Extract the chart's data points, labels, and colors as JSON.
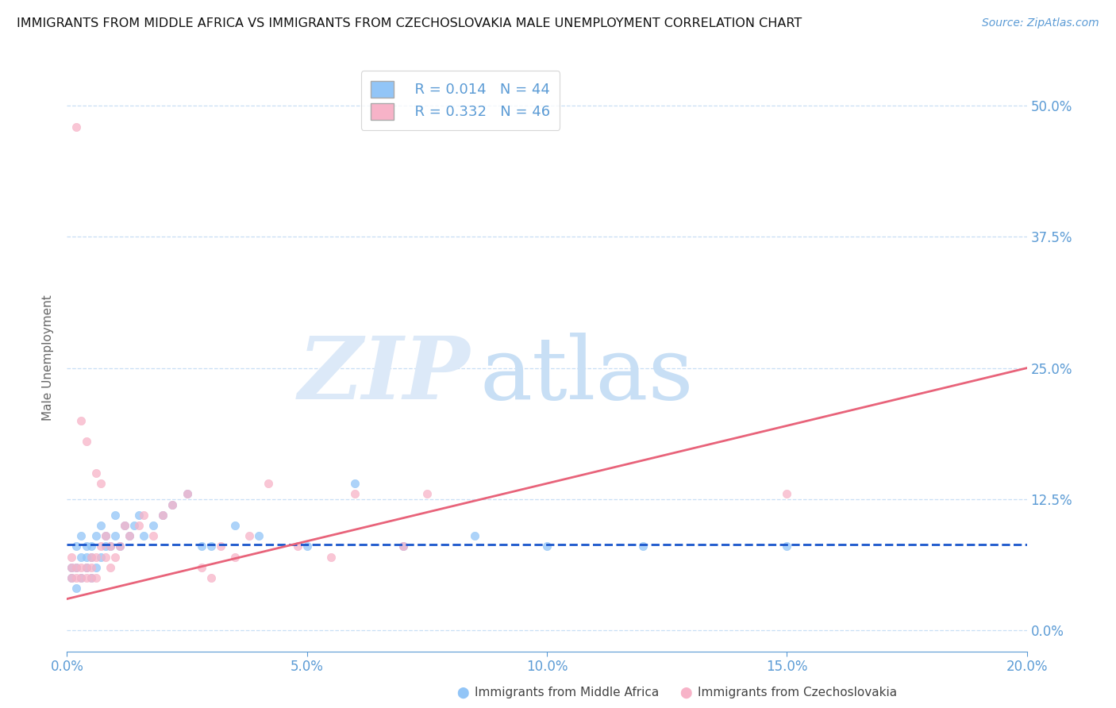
{
  "title": "IMMIGRANTS FROM MIDDLE AFRICA VS IMMIGRANTS FROM CZECHOSLOVAKIA MALE UNEMPLOYMENT CORRELATION CHART",
  "source": "Source: ZipAtlas.com",
  "xlabel_blue": "Immigrants from Middle Africa",
  "xlabel_pink": "Immigrants from Czechoslovakia",
  "ylabel": "Male Unemployment",
  "legend_blue_R": "R = 0.014",
  "legend_blue_N": "N = 44",
  "legend_pink_R": "R = 0.332",
  "legend_pink_N": "N = 46",
  "xlim": [
    0.0,
    0.2
  ],
  "ylim": [
    -0.02,
    0.54
  ],
  "yticks": [
    0.0,
    0.125,
    0.25,
    0.375,
    0.5
  ],
  "ytick_labels": [
    "0.0%",
    "12.5%",
    "25.0%",
    "37.5%",
    "50.0%"
  ],
  "xticks": [
    0.0,
    0.05,
    0.1,
    0.15,
    0.2
  ],
  "xtick_labels": [
    "0.0%",
    "5.0%",
    "10.0%",
    "15.0%",
    "20.0%"
  ],
  "color_blue": "#92c5f7",
  "color_pink": "#f7b3c8",
  "color_trendline_blue": "#1a56cc",
  "color_trendline_pink": "#e8637a",
  "color_axis": "#5b9bd5",
  "color_grid": "#c8dff5",
  "blue_scatter_x": [
    0.001,
    0.001,
    0.002,
    0.002,
    0.002,
    0.003,
    0.003,
    0.003,
    0.004,
    0.004,
    0.004,
    0.005,
    0.005,
    0.005,
    0.006,
    0.006,
    0.007,
    0.007,
    0.008,
    0.008,
    0.009,
    0.01,
    0.01,
    0.011,
    0.012,
    0.013,
    0.014,
    0.015,
    0.016,
    0.018,
    0.02,
    0.022,
    0.025,
    0.028,
    0.03,
    0.035,
    0.04,
    0.05,
    0.06,
    0.07,
    0.085,
    0.1,
    0.12,
    0.15
  ],
  "blue_scatter_y": [
    0.05,
    0.06,
    0.04,
    0.06,
    0.08,
    0.05,
    0.07,
    0.09,
    0.06,
    0.07,
    0.08,
    0.05,
    0.07,
    0.08,
    0.06,
    0.09,
    0.07,
    0.1,
    0.08,
    0.09,
    0.08,
    0.09,
    0.11,
    0.08,
    0.1,
    0.09,
    0.1,
    0.11,
    0.09,
    0.1,
    0.11,
    0.12,
    0.13,
    0.08,
    0.08,
    0.1,
    0.09,
    0.08,
    0.14,
    0.08,
    0.09,
    0.08,
    0.08,
    0.08
  ],
  "pink_scatter_x": [
    0.001,
    0.001,
    0.001,
    0.002,
    0.002,
    0.002,
    0.003,
    0.003,
    0.003,
    0.004,
    0.004,
    0.004,
    0.005,
    0.005,
    0.005,
    0.006,
    0.006,
    0.006,
    0.007,
    0.007,
    0.008,
    0.008,
    0.009,
    0.009,
    0.01,
    0.011,
    0.012,
    0.013,
    0.015,
    0.016,
    0.018,
    0.02,
    0.022,
    0.025,
    0.028,
    0.03,
    0.032,
    0.035,
    0.038,
    0.042,
    0.048,
    0.055,
    0.06,
    0.07,
    0.075,
    0.15
  ],
  "pink_scatter_y": [
    0.05,
    0.06,
    0.07,
    0.05,
    0.06,
    0.48,
    0.05,
    0.06,
    0.2,
    0.05,
    0.06,
    0.18,
    0.05,
    0.06,
    0.07,
    0.05,
    0.15,
    0.07,
    0.14,
    0.08,
    0.07,
    0.09,
    0.06,
    0.08,
    0.07,
    0.08,
    0.1,
    0.09,
    0.1,
    0.11,
    0.09,
    0.11,
    0.12,
    0.13,
    0.06,
    0.05,
    0.08,
    0.07,
    0.09,
    0.14,
    0.08,
    0.07,
    0.13,
    0.08,
    0.13,
    0.13
  ],
  "blue_trendline_x": [
    0.0,
    0.2
  ],
  "blue_trendline_y": [
    0.082,
    0.082
  ],
  "pink_trendline_x": [
    0.0,
    0.2
  ],
  "pink_trendline_y": [
    0.03,
    0.25
  ]
}
